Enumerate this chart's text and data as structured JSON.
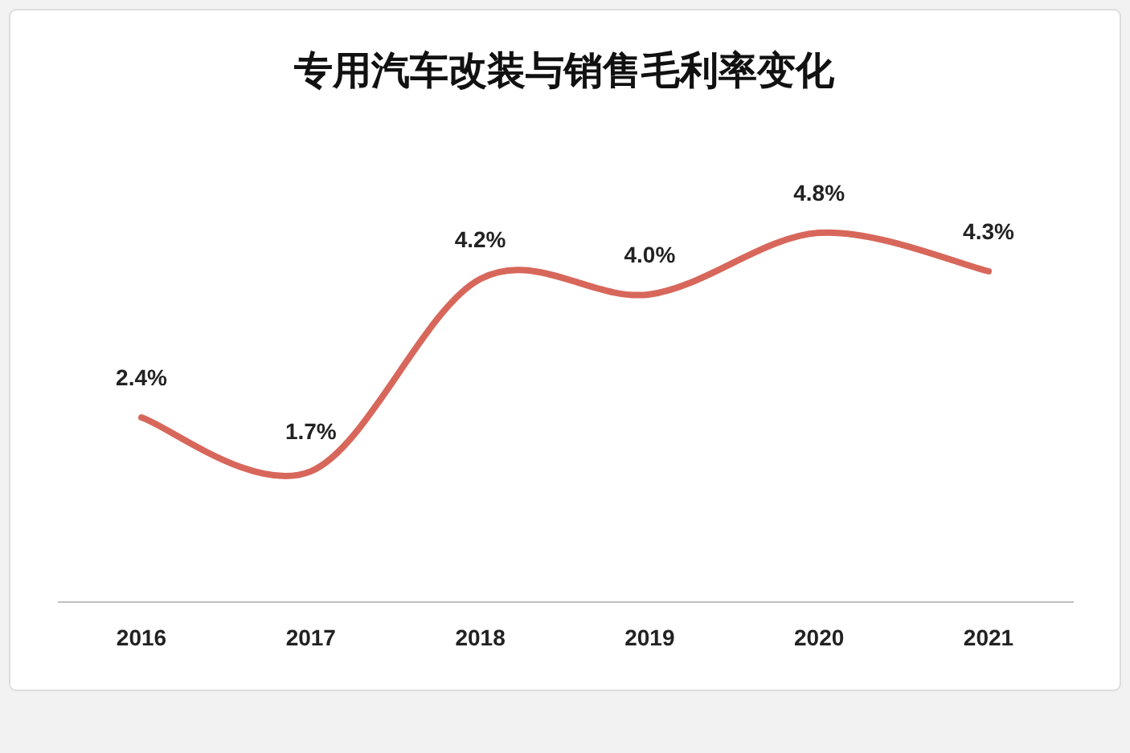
{
  "chart_data": {
    "type": "line",
    "title": "专用汽车改装与销售毛利率变化",
    "categories": [
      "2016",
      "2017",
      "2018",
      "2019",
      "2020",
      "2021"
    ],
    "values": [
      2.4,
      1.7,
      4.2,
      4.0,
      4.8,
      4.3
    ],
    "value_labels": [
      "2.4%",
      "1.7%",
      "4.2%",
      "4.0%",
      "4.8%",
      "4.3%"
    ],
    "color": "#d8675b"
  }
}
